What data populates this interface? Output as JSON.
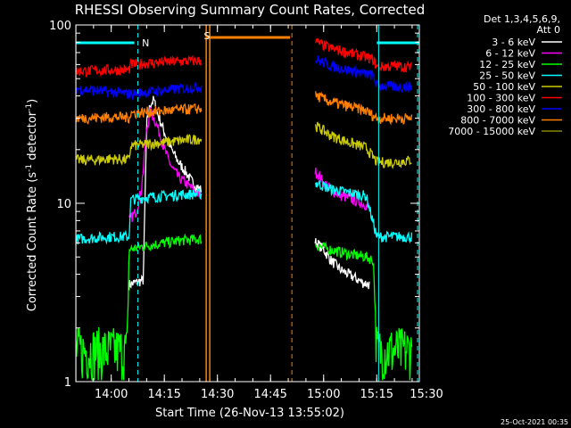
{
  "chart_data": {
    "type": "line",
    "title": "RHESSI Observing Summary Count Rates, Corrected",
    "ylabel_main": "Corrected Count Rate (s",
    "ylabel_exp1": "-1",
    "ylabel_mid": " detector",
    "ylabel_exp2": "-1",
    "ylabel_end": ")",
    "xlabel": "Start Time (26-Nov-13 13:55:02)",
    "yscale": "log",
    "ylim": [
      1,
      100
    ],
    "xlim": [
      -5.0333,
      92
    ],
    "x_ticks": [
      {
        "value": 4.9667,
        "label": "14:00"
      },
      {
        "value": 19.9667,
        "label": "14:15"
      },
      {
        "value": 34.9667,
        "label": "14:30"
      },
      {
        "value": 49.9667,
        "label": "14:45"
      },
      {
        "value": 64.9667,
        "label": "15:00"
      },
      {
        "value": 79.9667,
        "label": "15:15"
      },
      {
        "value": 94.9667,
        "label": "15:30"
      }
    ],
    "y_ticks": [
      {
        "value": 1,
        "label": "1"
      },
      {
        "value": 10,
        "label": "10"
      },
      {
        "value": 100,
        "label": "100"
      }
    ],
    "legend_header": [
      "Det 1,3,4,5,6,9,",
      "Att 0"
    ],
    "legend_position": "top-right",
    "footer": "25-Oct-2021 00:35",
    "gaps": [
      [
        30.5,
        62.5
      ]
    ],
    "series": [
      {
        "name": "3 - 6 keV",
        "color": "#ffffff",
        "x": [
          10,
          12,
          14,
          15,
          16,
          17,
          18,
          20,
          22,
          24,
          26,
          28,
          30,
          63,
          65,
          67,
          70,
          73,
          76,
          78
        ],
        "y": [
          3.5,
          3.6,
          3.7,
          28,
          36,
          38,
          32,
          25,
          20,
          17,
          15,
          13,
          12,
          6,
          5.5,
          4.8,
          4.2,
          3.9,
          3.6,
          3.5
        ]
      },
      {
        "name": "6 - 12 keV",
        "color": "#ff00ff",
        "x": [
          10,
          12,
          13.5,
          15,
          16,
          17,
          18,
          20,
          22,
          24,
          26,
          28,
          30,
          63,
          65,
          67,
          70,
          73,
          76,
          78
        ],
        "y": [
          8,
          9,
          12,
          26,
          33,
          30,
          27,
          20,
          16,
          14,
          13,
          12,
          11,
          15,
          13,
          12,
          11,
          10.5,
          10,
          9.5
        ]
      },
      {
        "name": "12 - 25 keV",
        "color": "#00ff00",
        "x": [
          -5,
          0,
          5,
          9.5,
          10,
          15,
          20,
          25,
          30,
          63,
          67,
          72,
          77,
          79,
          80,
          85,
          90
        ],
        "y": [
          1.5,
          1.5,
          1.5,
          1.5,
          5.5,
          5.8,
          6,
          6.2,
          6.3,
          5.8,
          5.5,
          5.2,
          5,
          4.8,
          1.5,
          1.5,
          1.5
        ]
      },
      {
        "name": "25 - 50 keV",
        "color": "#00ffff",
        "x": [
          -5,
          0,
          5,
          10,
          10.5,
          15,
          20,
          25,
          30,
          63,
          67,
          72,
          77,
          80,
          85,
          90
        ],
        "y": [
          6.3,
          6.4,
          6.5,
          6.5,
          10.5,
          10.8,
          11,
          11.2,
          11.3,
          13,
          12,
          11.5,
          11,
          6.5,
          6.5,
          6.5
        ]
      },
      {
        "name": "50 - 100 keV",
        "color": "#cccc00",
        "x": [
          -5,
          0,
          5,
          10,
          10.5,
          15,
          20,
          25,
          30,
          63,
          67,
          72,
          77,
          80,
          85,
          90
        ],
        "y": [
          17.5,
          17.5,
          17.8,
          17.5,
          21,
          21.5,
          22,
          22.5,
          23,
          27,
          24,
          22,
          20.5,
          17,
          17,
          17.5
        ]
      },
      {
        "name": "100 - 300 keV",
        "color": "#ff0000",
        "x": [
          -5,
          0,
          5,
          10,
          10.5,
          15,
          20,
          25,
          30,
          63,
          67,
          72,
          77,
          79,
          80,
          85,
          90
        ],
        "y": [
          55,
          55.5,
          56,
          56,
          60,
          61,
          62,
          62.5,
          63,
          80,
          74,
          70,
          66,
          64,
          58,
          59,
          58
        ]
      },
      {
        "name": "300 - 800 keV",
        "color": "#0000ff",
        "x": [
          -5,
          0,
          5,
          10,
          15,
          20,
          25,
          30,
          63,
          67,
          72,
          77,
          79,
          80,
          85,
          90
        ],
        "y": [
          44,
          43,
          42,
          41,
          42,
          43,
          44,
          45,
          64,
          59,
          56,
          53,
          52,
          46,
          45,
          45
        ]
      },
      {
        "name": "800 - 7000 keV",
        "color": "#ff8000",
        "x": [
          -5,
          0,
          5,
          10,
          10.5,
          15,
          20,
          25,
          30,
          63,
          67,
          72,
          77,
          80,
          85,
          90
        ],
        "y": [
          30,
          30.2,
          30.5,
          30.3,
          32,
          32.5,
          33,
          33.5,
          34,
          40,
          37,
          35,
          33,
          30,
          30,
          30
        ]
      },
      {
        "name": "7000 - 15000 keV",
        "color": "#888800",
        "x": [],
        "y": []
      }
    ],
    "markers": {
      "color_night": "#00ffff",
      "color_saa": "#ff8000",
      "night_bar": [
        [
          -5,
          11.5
        ],
        [
          80,
          92
        ]
      ],
      "night_vlines_solid": [
        -5,
        80.5
      ],
      "night_vlines_dashed": [
        12.5,
        91.5
      ],
      "night_label": "N",
      "night_label_x": 14.7,
      "saa_bar": [
        [
          32,
          55.5
        ]
      ],
      "saa_vlines_solid": [
        31.8,
        32.8
      ],
      "saa_vlines_dashed": [
        56
      ],
      "saa_label": "S",
      "saa_label_x": 32
    }
  }
}
